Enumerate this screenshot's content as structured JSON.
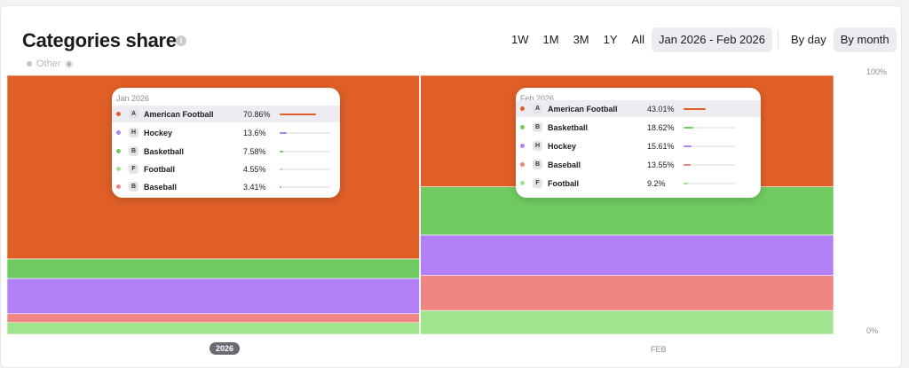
{
  "header": {
    "title": "Categories share",
    "legend_hidden_label": "Other"
  },
  "range_buttons": [
    "1W",
    "1M",
    "3M",
    "1Y",
    "All"
  ],
  "date_range_label": "Jan 2026 - Feb 2026",
  "granularity_buttons": [
    "By day",
    "By month"
  ],
  "selected_granularity": "By month",
  "axis": {
    "top": "100%",
    "bottom": "0%"
  },
  "x_ticks": [
    "2026",
    "FEB"
  ],
  "colors": {
    "American Football": "#e05f27",
    "Basketball": "#6fcb60",
    "Hockey": "#b37ff7",
    "Baseball": "#ee8582",
    "Football": "#9fe58d"
  },
  "chart_data": {
    "type": "area",
    "stacked": "percent",
    "categories": [
      "Jan 2026",
      "Feb 2026"
    ],
    "series": [
      {
        "name": "American Football",
        "badge": "A",
        "values": [
          70.86,
          43.01
        ]
      },
      {
        "name": "Basketball",
        "badge": "B",
        "values": [
          7.58,
          18.62
        ]
      },
      {
        "name": "Hockey",
        "badge": "H",
        "values": [
          13.6,
          15.61
        ]
      },
      {
        "name": "Baseball",
        "badge": "B",
        "values": [
          3.41,
          13.55
        ]
      },
      {
        "name": "Football",
        "badge": "F",
        "values": [
          4.55,
          9.2
        ]
      }
    ],
    "ylim": [
      0,
      100
    ],
    "grid": false
  },
  "tooltips": [
    {
      "month": "Jan 2026",
      "rows": [
        {
          "name": "American Football",
          "badge": "A",
          "value": "70.86%"
        },
        {
          "name": "Hockey",
          "badge": "H",
          "value": "13.6%"
        },
        {
          "name": "Basketball",
          "badge": "B",
          "value": "7.58%"
        },
        {
          "name": "Football",
          "badge": "F",
          "value": "4.55%"
        },
        {
          "name": "Baseball",
          "badge": "B",
          "value": "3.41%"
        }
      ]
    },
    {
      "month": "Feb 2026",
      "rows": [
        {
          "name": "American Football",
          "badge": "A",
          "value": "43.01%"
        },
        {
          "name": "Basketball",
          "badge": "B",
          "value": "18.62%"
        },
        {
          "name": "Hockey",
          "badge": "H",
          "value": "15.61%"
        },
        {
          "name": "Baseball",
          "badge": "B",
          "value": "13.55%"
        },
        {
          "name": "Football",
          "badge": "F",
          "value": "9.2%"
        }
      ]
    }
  ]
}
